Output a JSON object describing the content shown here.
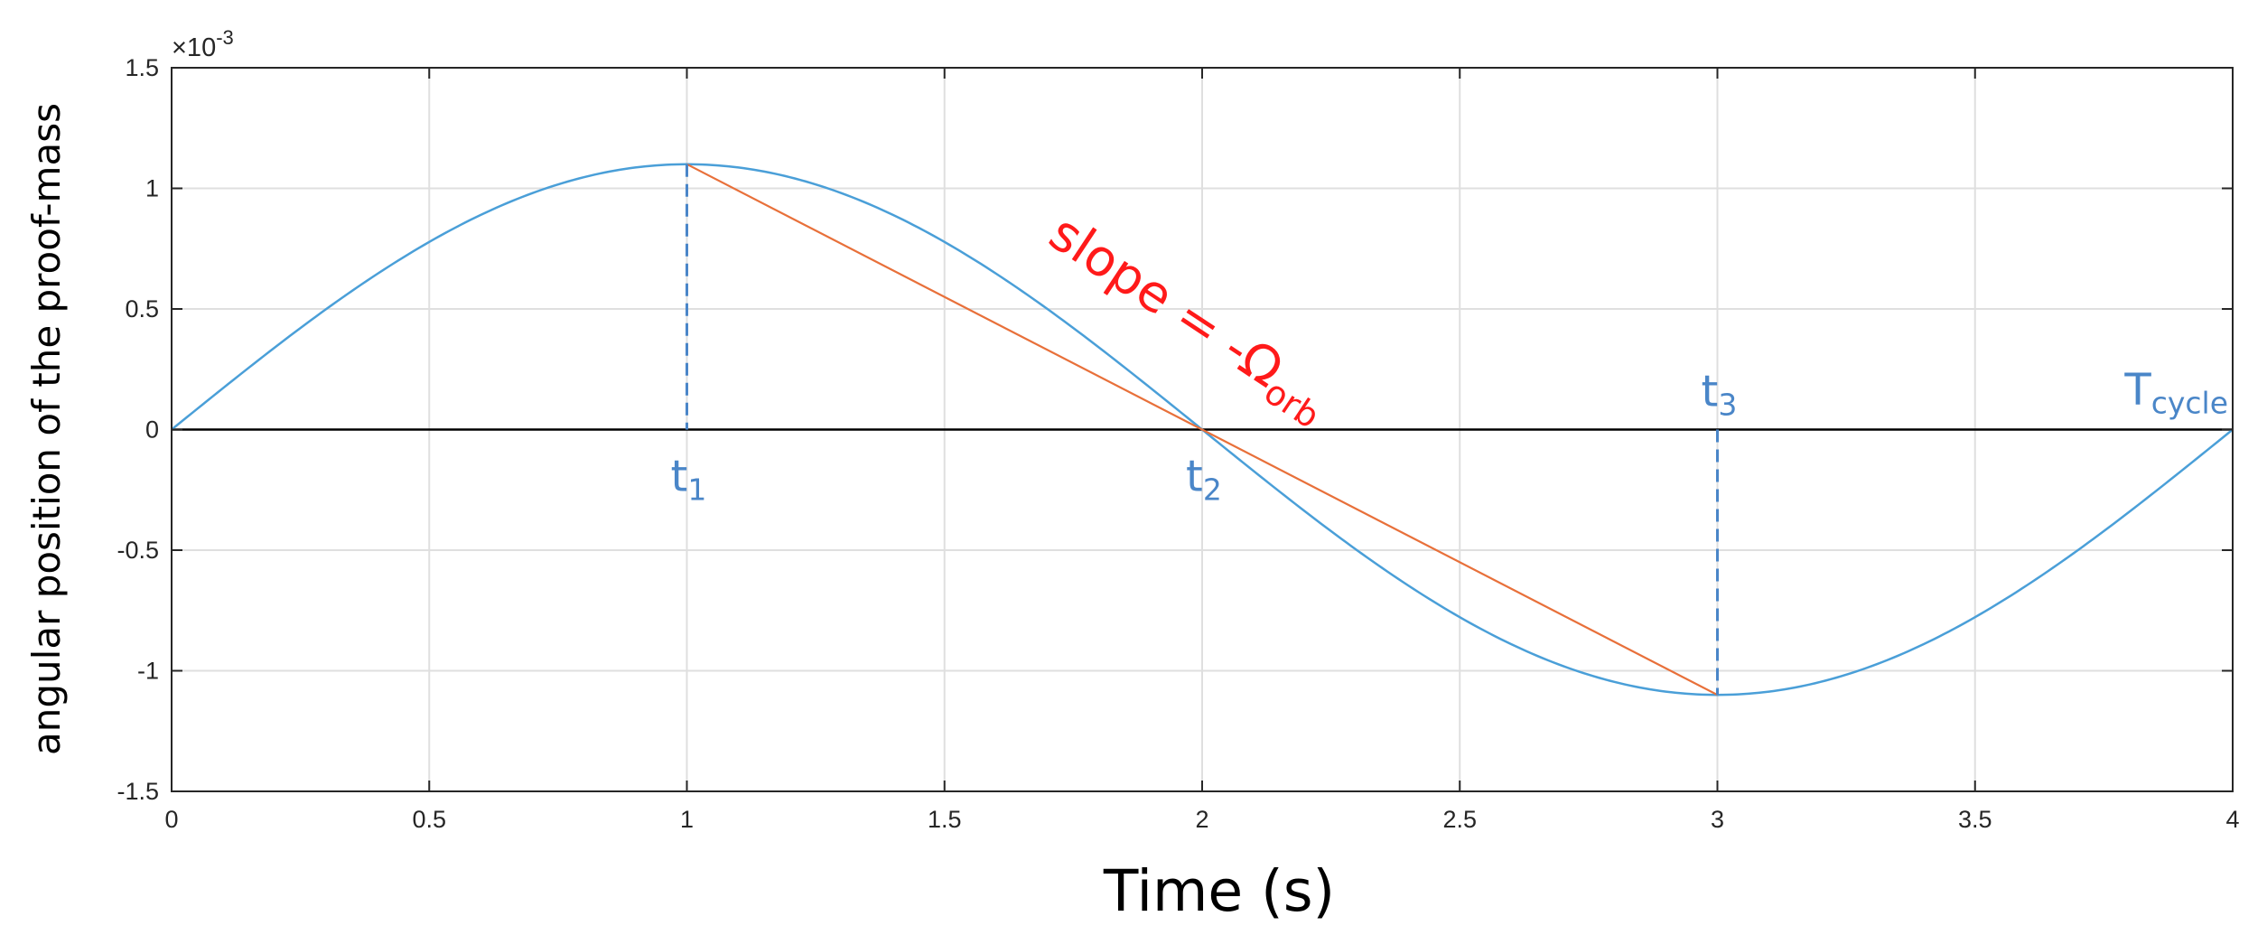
{
  "chart_data": {
    "type": "line",
    "xlabel": "Time (s)",
    "ylabel": "angular position of the proof-mass",
    "y_exponent_label": "×10",
    "y_exponent_power": "-3",
    "xlim": [
      0,
      4
    ],
    "ylim": [
      -1.5,
      1.5
    ],
    "y_scale_factor": 0.001,
    "grid": true,
    "x_ticks": [
      0,
      0.5,
      1,
      1.5,
      2,
      2.5,
      3,
      3.5,
      4
    ],
    "x_tick_labels": [
      "0",
      "0.5",
      "1",
      "1.5",
      "2",
      "2.5",
      "3",
      "3.5",
      "4"
    ],
    "y_ticks": [
      -1.5,
      -1,
      -0.5,
      0,
      0.5,
      1,
      1.5
    ],
    "y_tick_labels": [
      "-1.5",
      "-1",
      "-0.5",
      "0",
      "0.5",
      "1",
      "1.5"
    ],
    "series": [
      {
        "role": "sine",
        "color": "#4a9fd8",
        "x": [
          0,
          0.25,
          0.5,
          0.75,
          1,
          1.25,
          1.5,
          1.75,
          2,
          2.25,
          2.5,
          2.75,
          3,
          3.25,
          3.5,
          3.75,
          4
        ],
        "y": [
          0,
          0.42,
          0.78,
          1.02,
          1.1,
          1.02,
          0.78,
          0.42,
          0,
          -0.42,
          -0.78,
          -1.02,
          -1.1,
          -1.02,
          -0.78,
          -0.42,
          0
        ]
      },
      {
        "role": "slope-line",
        "color": "#e8703a",
        "x": [
          1,
          3
        ],
        "y": [
          1.1,
          -1.1
        ]
      }
    ],
    "reference_line": {
      "y": 0,
      "color": "#000000"
    },
    "markers": [
      {
        "x": 1,
        "from_y": 1.1,
        "to_y": 0,
        "base": "t",
        "sub": "1",
        "side": "below"
      },
      {
        "x": 2,
        "from_y": 0,
        "to_y": 0,
        "base": "t",
        "sub": "2",
        "side": "below"
      },
      {
        "x": 3,
        "from_y": 0,
        "to_y": -1.1,
        "base": "t",
        "sub": "3",
        "side": "above"
      }
    ],
    "tcycle_label": {
      "base": "T",
      "sub": "cycle"
    },
    "slope_annotation": {
      "main": "slope = -Ω",
      "sub": "orb",
      "color": "#ff1a1a"
    },
    "colors": {
      "axis": "#262626",
      "grid": "#dfdfdf",
      "annotation_blue": "#4a86c8"
    }
  }
}
